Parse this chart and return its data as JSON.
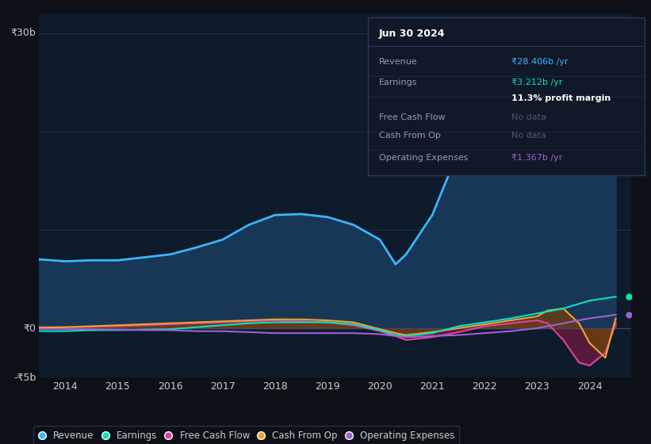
{
  "bg_color": "#0d1117",
  "plot_bg_color": "#0d1b2a",
  "y_label_top": "₹30b",
  "y_label_zero": "₹0",
  "y_label_bot": "-₹5b",
  "ylim": [
    -5000000000,
    32000000000
  ],
  "yticks": [
    -5000000000,
    0,
    10000000000,
    20000000000,
    30000000000
  ],
  "xlim_start": 2013.5,
  "xlim_end": 2024.8,
  "xticks": [
    2014,
    2015,
    2016,
    2017,
    2018,
    2019,
    2020,
    2021,
    2022,
    2023,
    2024
  ],
  "legend_items": [
    {
      "label": "Revenue",
      "color": "#38b6ff"
    },
    {
      "label": "Earnings",
      "color": "#00e5c0"
    },
    {
      "label": "Free Cash Flow",
      "color": "#e040a0"
    },
    {
      "label": "Cash From Op",
      "color": "#f0a030"
    },
    {
      "label": "Operating Expenses",
      "color": "#a060d0"
    }
  ],
  "info_box": {
    "title": "Jun 30 2024",
    "rows": [
      {
        "label": "Revenue",
        "value": "₹28.406b /yr",
        "value_color": "#38b6ff"
      },
      {
        "label": "Earnings",
        "value": "₹3.212b /yr",
        "value_color": "#00e5c0"
      },
      {
        "label": "",
        "value": "11.3% profit margin",
        "value_color": "#ffffff",
        "bold": true
      },
      {
        "label": "Free Cash Flow",
        "value": "No data",
        "value_color": "#555566"
      },
      {
        "label": "Cash From Op",
        "value": "No data",
        "value_color": "#555566"
      },
      {
        "label": "Operating Expenses",
        "value": "₹1.367b /yr",
        "value_color": "#a060d0"
      }
    ]
  },
  "revenue": {
    "years": [
      2013.5,
      2014.0,
      2014.5,
      2015.0,
      2015.5,
      2016.0,
      2016.5,
      2017.0,
      2017.5,
      2018.0,
      2018.5,
      2019.0,
      2019.5,
      2020.0,
      2020.3,
      2020.5,
      2021.0,
      2021.5,
      2022.0,
      2022.5,
      2023.0,
      2023.5,
      2024.0,
      2024.5
    ],
    "values": [
      7000000000,
      6800000000,
      6900000000,
      6900000000,
      7200000000,
      7500000000,
      8200000000,
      9000000000,
      10500000000,
      11500000000,
      11600000000,
      11300000000,
      10500000000,
      9000000000,
      6500000000,
      7500000000,
      11500000000,
      18000000000,
      22000000000,
      25000000000,
      26500000000,
      27500000000,
      28000000000,
      28400000000
    ],
    "color": "#38b6ff",
    "fill_color": "#1a3a5c",
    "linewidth": 2.0
  },
  "earnings": {
    "years": [
      2013.5,
      2014.0,
      2014.5,
      2015.0,
      2015.5,
      2016.0,
      2016.5,
      2017.0,
      2017.5,
      2018.0,
      2018.5,
      2019.0,
      2019.5,
      2020.0,
      2020.3,
      2020.5,
      2021.0,
      2021.5,
      2022.0,
      2022.5,
      2023.0,
      2023.5,
      2024.0,
      2024.5
    ],
    "values": [
      -300000000,
      -300000000,
      -200000000,
      -200000000,
      -150000000,
      -100000000,
      100000000,
      300000000,
      500000000,
      600000000,
      600000000,
      600000000,
      400000000,
      -200000000,
      -700000000,
      -800000000,
      -500000000,
      200000000,
      600000000,
      1000000000,
      1500000000,
      2000000000,
      2800000000,
      3200000000
    ],
    "color": "#00e5c0",
    "linewidth": 1.5
  },
  "free_cash_flow": {
    "years": [
      2013.5,
      2014.0,
      2014.5,
      2015.0,
      2015.5,
      2016.0,
      2016.5,
      2017.0,
      2017.5,
      2018.0,
      2018.5,
      2019.0,
      2019.5,
      2020.0,
      2020.3,
      2020.5,
      2021.0,
      2021.5,
      2022.0,
      2022.5,
      2023.0,
      2023.2,
      2023.5,
      2023.8,
      2024.0,
      2024.3,
      2024.5
    ],
    "values": [
      100000000,
      100000000,
      150000000,
      200000000,
      300000000,
      400000000,
      500000000,
      600000000,
      700000000,
      800000000,
      700000000,
      600000000,
      300000000,
      -300000000,
      -800000000,
      -1200000000,
      -900000000,
      -400000000,
      200000000,
      500000000,
      800000000,
      500000000,
      -1200000000,
      -3500000000,
      -3800000000,
      -2500000000,
      500000000
    ],
    "color": "#e040a0",
    "fill_color": "#6b1a40",
    "linewidth": 1.5
  },
  "cash_from_op": {
    "years": [
      2013.5,
      2014.0,
      2014.5,
      2015.0,
      2015.5,
      2016.0,
      2016.5,
      2017.0,
      2017.5,
      2018.0,
      2018.5,
      2019.0,
      2019.5,
      2020.0,
      2020.3,
      2020.5,
      2021.0,
      2021.5,
      2022.0,
      2022.5,
      2023.0,
      2023.2,
      2023.5,
      2023.8,
      2024.0,
      2024.3,
      2024.5
    ],
    "values": [
      50000000,
      100000000,
      200000000,
      300000000,
      400000000,
      500000000,
      600000000,
      700000000,
      800000000,
      900000000,
      900000000,
      800000000,
      600000000,
      -100000000,
      -500000000,
      -700000000,
      -400000000,
      0,
      400000000,
      800000000,
      1200000000,
      1800000000,
      2000000000,
      500000000,
      -1500000000,
      -3000000000,
      1000000000
    ],
    "color": "#f0a030",
    "fill_color": "#6b4010",
    "linewidth": 1.5
  },
  "operating_expenses": {
    "years": [
      2013.5,
      2014.0,
      2014.5,
      2015.0,
      2015.5,
      2016.0,
      2016.5,
      2017.0,
      2017.5,
      2018.0,
      2018.5,
      2019.0,
      2019.5,
      2020.0,
      2020.3,
      2020.5,
      2021.0,
      2021.5,
      2022.0,
      2022.5,
      2023.0,
      2023.5,
      2024.0,
      2024.5
    ],
    "values": [
      -100000000,
      -100000000,
      -100000000,
      -150000000,
      -200000000,
      -200000000,
      -300000000,
      -300000000,
      -400000000,
      -500000000,
      -500000000,
      -500000000,
      -500000000,
      -600000000,
      -800000000,
      -900000000,
      -800000000,
      -700000000,
      -500000000,
      -300000000,
      0,
      500000000,
      1000000000,
      1367000000
    ],
    "color": "#a060d0",
    "linewidth": 1.5
  },
  "grid_color": "#1e3050",
  "text_color": "#cccccc",
  "label_color": "#888899"
}
